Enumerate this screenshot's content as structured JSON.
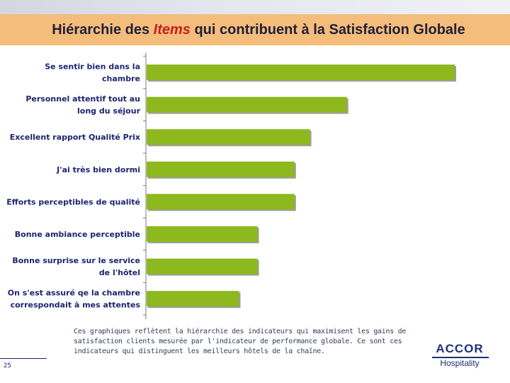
{
  "title": {
    "prefix": "Hiérarchie des ",
    "emphasis": "Items",
    "suffix": " qui contribuent à la Satisfaction Globale"
  },
  "chart_data": {
    "type": "bar",
    "orientation": "horizontal",
    "categories": [
      [
        "Se sentir bien dans la",
        "chambre"
      ],
      [
        "Personnel attentif tout au",
        "long du séjour"
      ],
      [
        "Excellent rapport Qualité Prix"
      ],
      [
        "J'ai très bien dormi"
      ],
      [
        "Efforts perceptibles de qualité"
      ],
      [
        "Bonne ambiance perceptible"
      ],
      [
        "Bonne surprise sur le service",
        "de l'hôtel"
      ],
      [
        "On s'est assuré qe la chambre",
        "correspondait à mes attentes"
      ]
    ],
    "values": [
      100,
      65,
      53,
      48,
      48,
      36,
      36,
      30
    ],
    "xlim": [
      0,
      100
    ],
    "bar_color": "#8db81e",
    "axis_color": "#7a7a7a"
  },
  "caption": [
    "Ces graphiques reflètent la hiérarchie des indicateurs qui maximisent les gains de",
    "satisfaction clients mesurée par l'indicateur de performance globale.  Ce sont ces",
    "indicateurs qui distinguent les meilleurs hôtels de la chaîne."
  ],
  "footer": {
    "page_number": "25"
  },
  "logo": {
    "name": "ACCOR",
    "subtitle": "Hospitality"
  }
}
